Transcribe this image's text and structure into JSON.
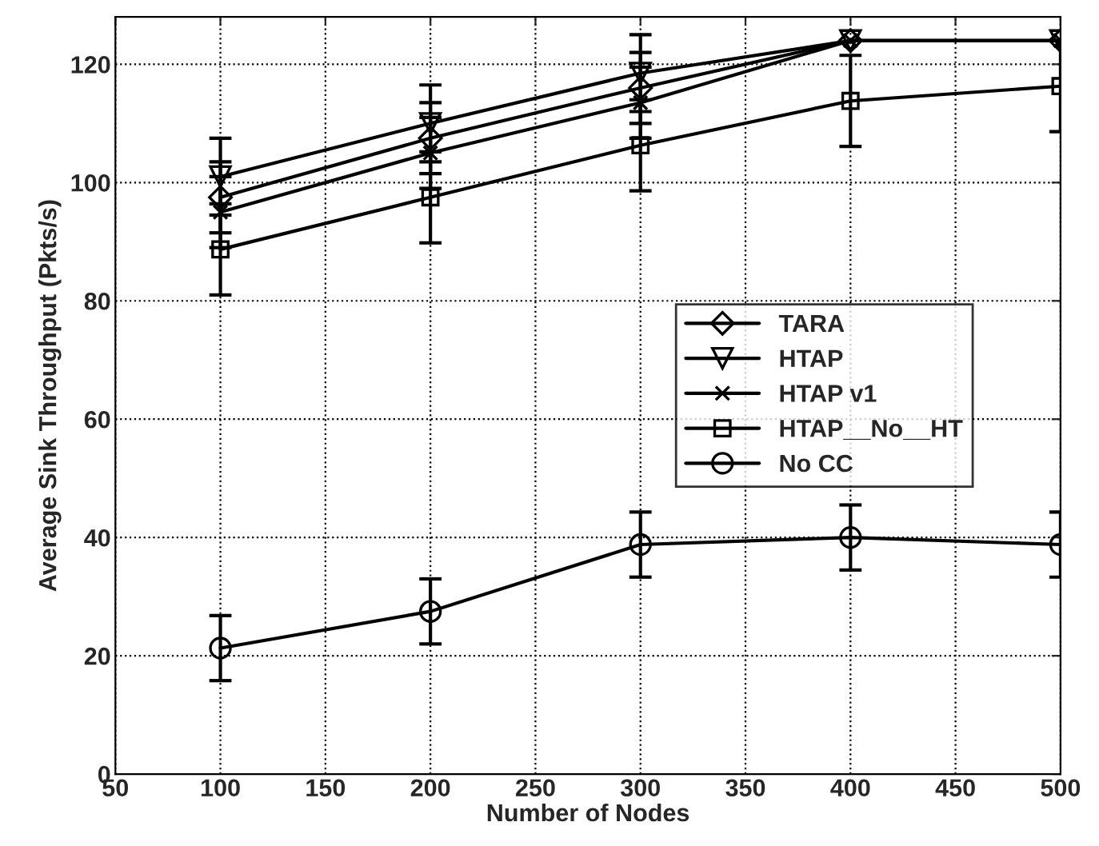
{
  "chart_data": {
    "type": "line",
    "xlabel": "Number of Nodes",
    "ylabel": "Average Sink Throughput (Pkts/s)",
    "x": [
      100,
      200,
      300,
      400,
      500
    ],
    "series": [
      {
        "name": "TARA",
        "color": "#000000",
        "marker": "diamond",
        "values": [
          97.5,
          107.5,
          116,
          124,
          124
        ],
        "errors": [
          6,
          6,
          6,
          null,
          null
        ]
      },
      {
        "name": "HTAP",
        "color": "#000000",
        "marker": "triangle",
        "values": [
          101,
          110,
          118.5,
          124,
          124
        ],
        "errors": [
          6.5,
          6.5,
          6.5,
          null,
          null
        ]
      },
      {
        "name": "HTAP v1",
        "color": "#000000",
        "marker": "cross",
        "values": [
          95,
          105,
          113.5,
          124,
          124
        ],
        "errors": [
          6,
          6,
          6,
          null,
          null
        ]
      },
      {
        "name": "HTAP__No__HT",
        "color": "#000000",
        "marker": "square",
        "values": [
          88.7,
          97.5,
          106.3,
          113.8,
          116.3
        ],
        "errors": [
          7.7,
          7.7,
          7.7,
          7.7,
          7.7
        ]
      },
      {
        "name": "No CC",
        "color": "#000000",
        "marker": "circle",
        "values": [
          21.3,
          27.5,
          38.8,
          40,
          38.8
        ],
        "errors": [
          5.5,
          5.5,
          5.5,
          5.5,
          5.5
        ]
      }
    ],
    "xlim": [
      50,
      500
    ],
    "xticks": [
      50,
      100,
      150,
      200,
      250,
      300,
      350,
      400,
      450,
      500
    ],
    "ylim": [
      0,
      128
    ],
    "yticks": [
      0,
      20,
      40,
      60,
      80,
      100,
      120
    ],
    "grid": true,
    "legend": "right"
  }
}
